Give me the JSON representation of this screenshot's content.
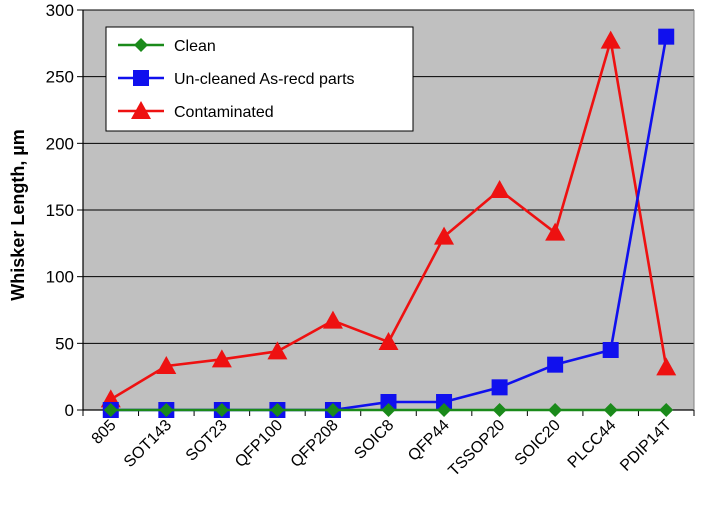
{
  "chart_data": {
    "type": "line",
    "title": "",
    "xlabel": "",
    "ylabel": "Whisker Length, µm",
    "ylim": [
      0,
      300
    ],
    "y_ticks": [
      0,
      50,
      100,
      150,
      200,
      250,
      300
    ],
    "grid": true,
    "legend_position": "top-left",
    "categories": [
      "805",
      "SOT143",
      "SOT23",
      "QFP100",
      "QFP208",
      "SOIC8",
      "QFP44",
      "TSSOP20",
      "SOIC20",
      "PLCC44",
      "PDIP14T"
    ],
    "series": [
      {
        "name": "Clean",
        "color": "#1a8a1a",
        "marker": "diamond",
        "values": [
          0,
          0,
          0,
          0,
          0,
          0,
          0,
          0,
          0,
          0,
          0
        ]
      },
      {
        "name": "Un-cleaned As-recd parts",
        "color": "#1010ee",
        "marker": "square",
        "values": [
          0,
          0,
          0,
          0,
          0,
          6,
          6,
          17,
          34,
          45,
          280
        ]
      },
      {
        "name": "Contaminated",
        "color": "#ee1111",
        "marker": "triangle",
        "values": [
          8,
          33,
          38,
          44,
          67,
          51,
          130,
          165,
          133,
          277,
          32
        ]
      }
    ],
    "plot_background": "#c0c0c0"
  }
}
